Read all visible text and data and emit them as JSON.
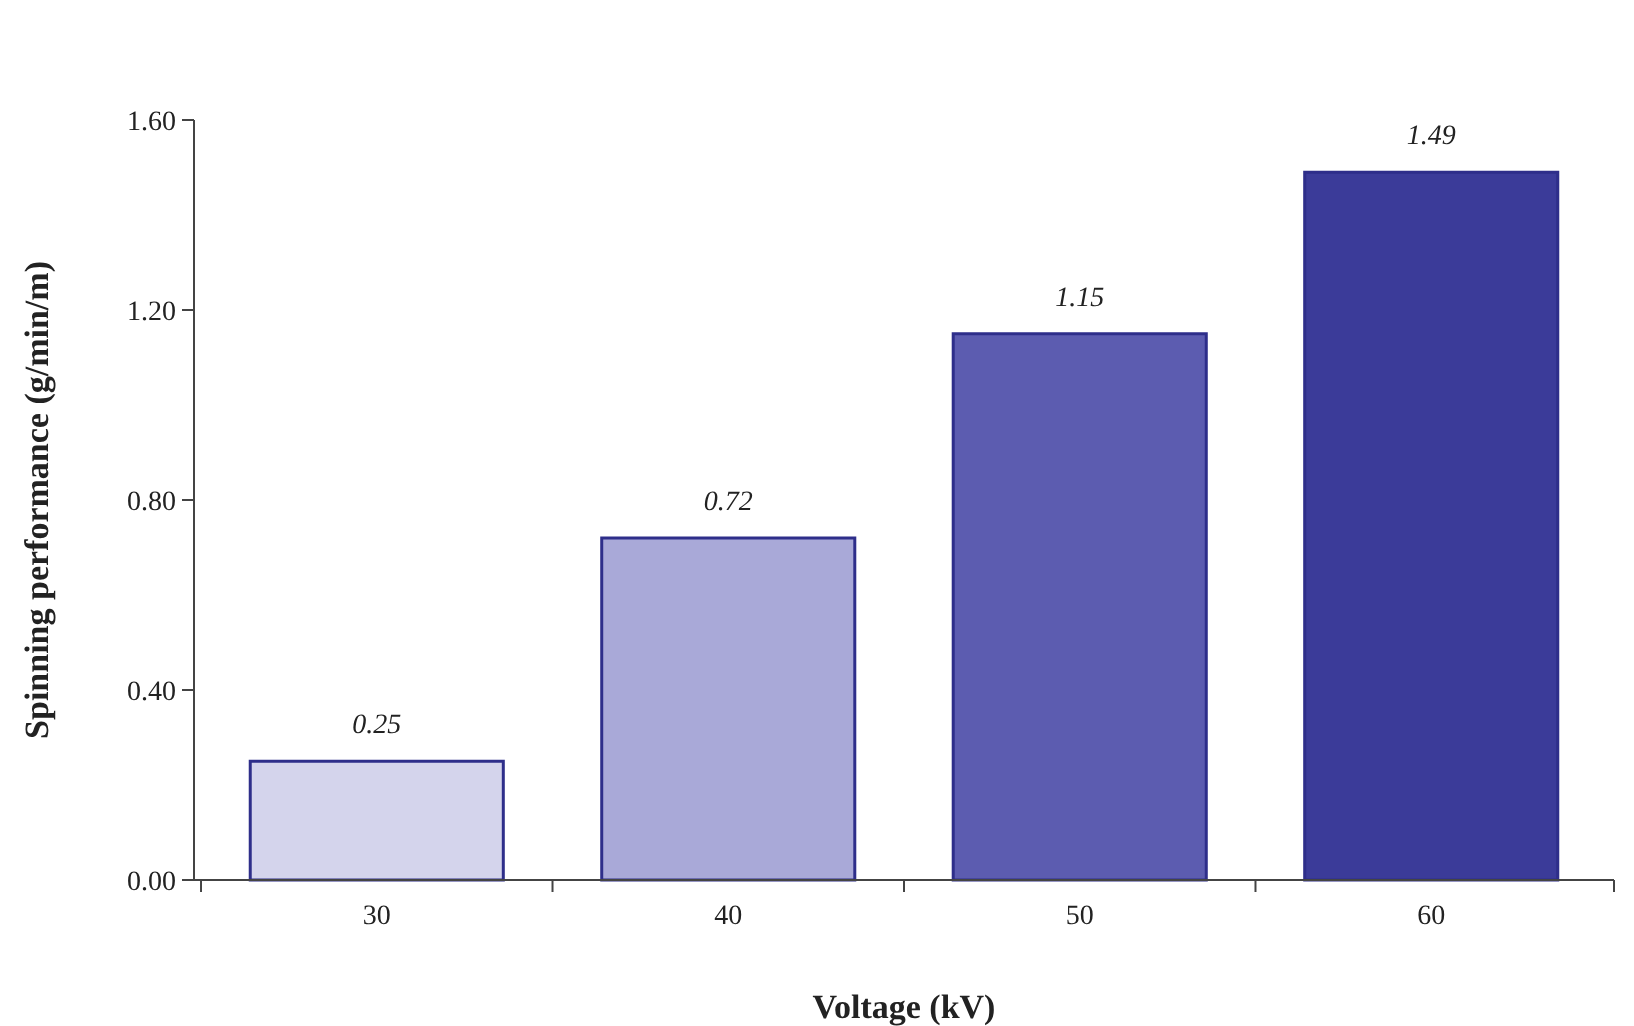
{
  "chart_data": {
    "type": "bar",
    "xlabel": "Voltage (kV)",
    "ylabel": "Spinning performance (g/min/m)",
    "categories": [
      "30",
      "40",
      "50",
      "60"
    ],
    "values": [
      0.25,
      0.72,
      1.15,
      1.49
    ],
    "colors": [
      "#d4d4ec",
      "#a9a9d8",
      "#5c5cb0",
      "#3b3b99"
    ],
    "ylim": [
      0,
      1.6
    ],
    "yticks": [
      {
        "value": 0,
        "label": "0.00"
      },
      {
        "value": 0.4,
        "label": "0.40"
      },
      {
        "value": 0.8,
        "label": "0.80"
      },
      {
        "value": 1.2,
        "label": "1.20"
      },
      {
        "value": 1.6,
        "label": "1.60"
      }
    ],
    "data_labels": true
  }
}
